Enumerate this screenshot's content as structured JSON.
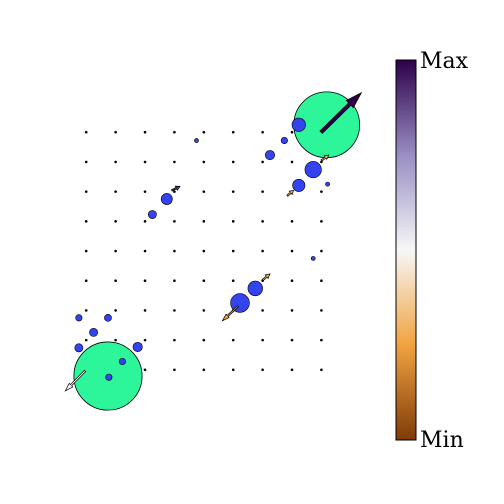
{
  "chart_data": {
    "type": "quiver",
    "xlim": [
      -1.3,
      8.7
    ],
    "ylim": [
      -2.7,
      10.6
    ],
    "grid_x": [
      0,
      1,
      2,
      3,
      4,
      5,
      6,
      7,
      8
    ],
    "grid_y": [
      0,
      1,
      2,
      3,
      4,
      5,
      6,
      7,
      8
    ],
    "circles": {
      "x": [
        -0.25,
        0.25,
        0.74,
        -0.25,
        1.23,
        1.75,
        0.77,
        2.25,
        2.74,
        3.75,
        5.23,
        5.75,
        6.74,
        6.25,
        7.23,
        7.72,
        7.23,
        7.72,
        8.21
      ],
      "y": [
        1.75,
        1.26,
        1.75,
        0.74,
        0.28,
        0.77,
        -0.25,
        5.23,
        5.75,
        7.72,
        2.25,
        2.74,
        7.72,
        7.23,
        6.21,
        6.74,
        8.25,
        3.75,
        6.25
      ],
      "size": [
        0.11,
        0.14,
        0.12,
        0.14,
        0.11,
        0.16,
        0.11,
        0.14,
        0.19,
        0.07,
        0.32,
        0.25,
        0.11,
        0.16,
        0.21,
        0.28,
        0.23,
        0.07,
        0.07
      ],
      "color": "#3344ee"
    },
    "big_circles": {
      "x": [
        0.74,
        8.18
      ],
      "y": [
        -0.21,
        8.25
      ],
      "size": [
        1.16,
        1.12
      ],
      "color": "#2cf59a"
    },
    "arrows": {
      "x": [
        7.99,
        -0.04,
        5.16,
        2.91,
        6.0,
        6.84,
        8.0
      ],
      "y": [
        8.0,
        -0.04,
        2.14,
        6.04,
        3.02,
        5.86,
        7.05
      ],
      "u": [
        1.37,
        -0.67,
        -0.53,
        0.28,
        0.25,
        0.21,
        0.25
      ],
      "v": [
        1.33,
        -0.67,
        -0.49,
        0.14,
        0.21,
        0.18,
        0.18
      ],
      "c": [
        1.0,
        0.5,
        0.25,
        0.9,
        0.3,
        0.3,
        0.3
      ]
    },
    "colormap": [
      "#7f3b08",
      "#f1a340",
      "#f7f7f7",
      "#998ec3",
      "#2d004b"
    ],
    "colorbar": {
      "max_label": "Max",
      "min_label": "Min"
    }
  }
}
